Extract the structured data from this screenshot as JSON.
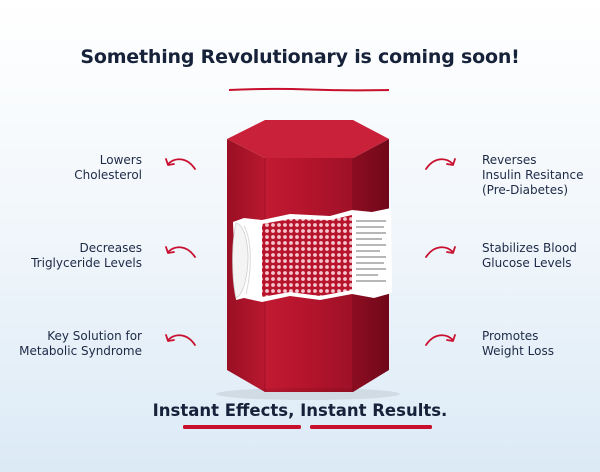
{
  "headline": "Something Revolutionary is coming soon!",
  "benefits_left": [
    {
      "line1": "Lowers",
      "line2": "Cholesterol"
    },
    {
      "line1": "Decreases",
      "line2": "Triglyceride Levels"
    },
    {
      "line1": "Key Solution for",
      "line2": "Metabolic Syndrome"
    }
  ],
  "benefits_right": [
    {
      "line1": "Reverses",
      "line2": "Insulin Resitance",
      "line3": "(Pre-Diabetes)"
    },
    {
      "line1": "Stabilizes Blood",
      "line2": "Glucose Levels"
    },
    {
      "line1": "Promotes",
      "line2": "Weight Loss"
    }
  ],
  "footer": {
    "part1": "Instant Effects",
    "separator": ", ",
    "part2": "Instant Results."
  },
  "colors": {
    "accent": "#c8102e",
    "box_front": "#b5172f",
    "box_side": "#8e0f22",
    "box_top": "#d42a43",
    "text": "#16213a"
  },
  "icons": {
    "arrow_left": "curved-arrow-left-icon",
    "arrow_right": "curved-arrow-right-icon"
  }
}
